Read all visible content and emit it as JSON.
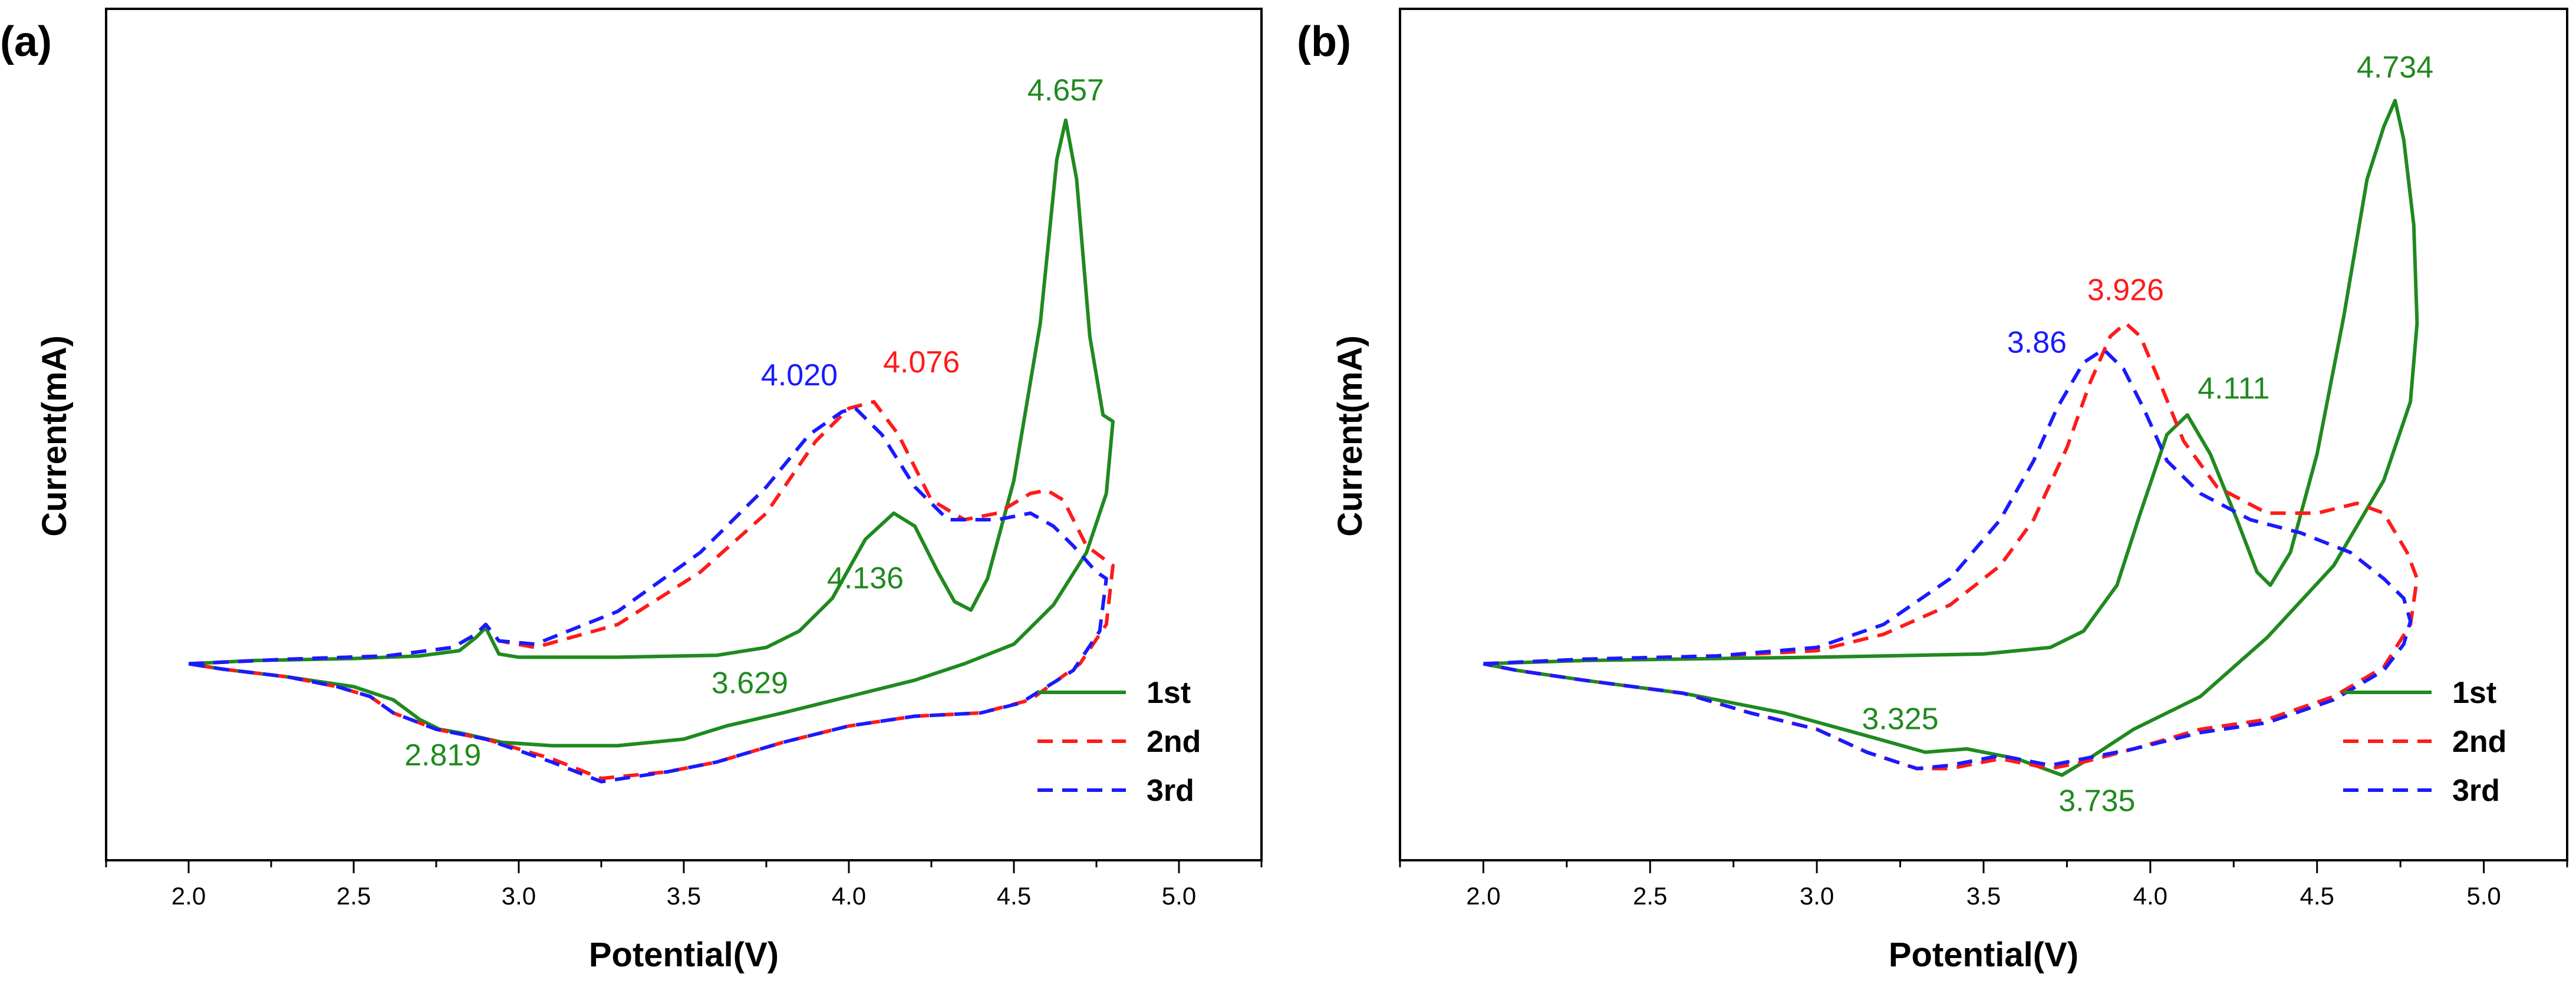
{
  "chart_data": [
    {
      "type": "line",
      "panel_label": "(a)",
      "xlabel": "Potential(V)",
      "ylabel": "Current(mA)",
      "xlim": [
        1.75,
        5.25
      ],
      "ylim": [
        -3.0,
        10.0
      ],
      "xticks": [
        2.0,
        2.5,
        3.0,
        3.5,
        4.0,
        4.5,
        5.0
      ],
      "xtick_labels": [
        "2.0",
        "2.5",
        "3.0",
        "3.5",
        "4.0",
        "4.5",
        "5.0"
      ],
      "legend": {
        "position": "bottom-right",
        "entries": [
          "1st",
          "2nd",
          "3rd"
        ]
      },
      "series": [
        {
          "name": "1st",
          "color": "#1f8a1f",
          "dash": "solid",
          "x": [
            2.0,
            2.2,
            2.5,
            2.7,
            2.82,
            2.87,
            2.9,
            2.94,
            3.0,
            3.3,
            3.6,
            3.75,
            3.85,
            3.95,
            4.05,
            4.136,
            4.2,
            4.27,
            4.32,
            4.37,
            4.42,
            4.5,
            4.58,
            4.63,
            4.657,
            4.69,
            4.73,
            4.77,
            4.8,
            4.78,
            4.72,
            4.62,
            4.5,
            4.35,
            4.2,
            4.0,
            3.8,
            3.629,
            3.5,
            3.3,
            3.1,
            2.95,
            2.819,
            2.76,
            2.7,
            2.62,
            2.5,
            2.3,
            2.1,
            2.0
          ],
          "y": [
            0.0,
            0.05,
            0.08,
            0.12,
            0.2,
            0.4,
            0.55,
            0.15,
            0.1,
            0.1,
            0.13,
            0.25,
            0.5,
            1.0,
            1.9,
            2.3,
            2.1,
            1.4,
            0.95,
            0.82,
            1.3,
            2.8,
            5.2,
            7.7,
            8.3,
            7.4,
            5.0,
            3.8,
            3.7,
            2.6,
            1.7,
            0.9,
            0.3,
            0.0,
            -0.25,
            -0.5,
            -0.75,
            -0.95,
            -1.15,
            -1.25,
            -1.25,
            -1.2,
            -1.05,
            -1.0,
            -0.85,
            -0.55,
            -0.35,
            -0.2,
            -0.08,
            0.0
          ]
        },
        {
          "name": "2nd",
          "color": "#ff1a1a",
          "dash": "dashed",
          "x": [
            2.0,
            2.3,
            2.6,
            2.8,
            2.87,
            2.9,
            2.94,
            3.05,
            3.3,
            3.55,
            3.75,
            3.9,
            4.0,
            4.076,
            4.15,
            4.25,
            4.35,
            4.45,
            4.55,
            4.6,
            4.65,
            4.72,
            4.8,
            4.78,
            4.7,
            4.55,
            4.4,
            4.2,
            4.0,
            3.8,
            3.6,
            3.45,
            3.25,
            3.1,
            2.9,
            2.75,
            2.62,
            2.55,
            2.45,
            2.3,
            2.1,
            2.0
          ],
          "y": [
            0.0,
            0.07,
            0.12,
            0.25,
            0.45,
            0.6,
            0.35,
            0.25,
            0.6,
            1.4,
            2.3,
            3.4,
            3.9,
            4.0,
            3.5,
            2.5,
            2.2,
            2.3,
            2.6,
            2.65,
            2.5,
            1.8,
            1.5,
            0.6,
            0.0,
            -0.55,
            -0.75,
            -0.8,
            -0.95,
            -1.2,
            -1.5,
            -1.65,
            -1.75,
            -1.45,
            -1.15,
            -1.0,
            -0.75,
            -0.5,
            -0.35,
            -0.2,
            -0.08,
            0.0
          ]
        },
        {
          "name": "3rd",
          "color": "#1a1aff",
          "dash": "dashed",
          "x": [
            2.0,
            2.3,
            2.6,
            2.8,
            2.87,
            2.9,
            2.94,
            3.05,
            3.3,
            3.55,
            3.75,
            3.88,
            3.98,
            4.02,
            4.1,
            4.2,
            4.3,
            4.45,
            4.55,
            4.62,
            4.68,
            4.75,
            4.78,
            4.76,
            4.68,
            4.52,
            4.4,
            4.2,
            4.0,
            3.8,
            3.6,
            3.45,
            3.25,
            3.1,
            2.9,
            2.75,
            2.62,
            2.55,
            2.45,
            2.3,
            2.1,
            2.0
          ],
          "y": [
            0.0,
            0.07,
            0.12,
            0.25,
            0.45,
            0.6,
            0.35,
            0.3,
            0.8,
            1.7,
            2.7,
            3.5,
            3.85,
            3.9,
            3.5,
            2.7,
            2.2,
            2.2,
            2.3,
            2.1,
            1.8,
            1.4,
            1.3,
            0.5,
            -0.1,
            -0.6,
            -0.75,
            -0.8,
            -0.95,
            -1.2,
            -1.5,
            -1.65,
            -1.8,
            -1.5,
            -1.15,
            -1.0,
            -0.75,
            -0.5,
            -0.35,
            -0.2,
            -0.08,
            0.0
          ]
        }
      ],
      "annotations": [
        {
          "text": "4.657",
          "x": 4.657,
          "y": 8.6,
          "color": "#1f8a1f"
        },
        {
          "text": "4.020",
          "x": 3.85,
          "y": 4.25,
          "color": "#1a1aff"
        },
        {
          "text": "4.076",
          "x": 4.22,
          "y": 4.45,
          "color": "#ff1a1a"
        },
        {
          "text": "4.136",
          "x": 4.05,
          "y": 1.15,
          "color": "#1f8a1f"
        },
        {
          "text": "3.629",
          "x": 3.7,
          "y": -0.45,
          "color": "#1f8a1f"
        },
        {
          "text": "2.819",
          "x": 2.77,
          "y": -1.55,
          "color": "#1f8a1f"
        }
      ]
    },
    {
      "type": "line",
      "panel_label": "(b)",
      "xlabel": "Potential(V)",
      "ylabel": "Current(mA)",
      "xlim": [
        1.75,
        5.25
      ],
      "ylim": [
        -3.0,
        10.0
      ],
      "xticks": [
        2.0,
        2.5,
        3.0,
        3.5,
        4.0,
        4.5,
        5.0
      ],
      "xtick_labels": [
        "2.0",
        "2.5",
        "3.0",
        "3.5",
        "4.0",
        "4.5",
        "5.0"
      ],
      "legend": {
        "position": "bottom-right",
        "entries": [
          "1st",
          "2nd",
          "3rd"
        ]
      },
      "series": [
        {
          "name": "1st",
          "color": "#1f8a1f",
          "dash": "solid",
          "x": [
            2.0,
            2.3,
            2.7,
            3.0,
            3.5,
            3.7,
            3.8,
            3.9,
            3.97,
            4.05,
            4.111,
            4.18,
            4.26,
            4.32,
            4.36,
            4.42,
            4.5,
            4.58,
            4.65,
            4.7,
            4.734,
            4.76,
            4.79,
            4.8,
            4.78,
            4.7,
            4.55,
            4.35,
            4.15,
            3.95,
            3.8,
            3.735,
            3.6,
            3.45,
            3.325,
            3.15,
            2.9,
            2.6,
            2.3,
            2.1,
            2.0
          ],
          "y": [
            0.0,
            0.05,
            0.08,
            0.1,
            0.15,
            0.25,
            0.5,
            1.2,
            2.3,
            3.5,
            3.8,
            3.2,
            2.2,
            1.4,
            1.2,
            1.7,
            3.2,
            5.3,
            7.4,
            8.2,
            8.6,
            8.0,
            6.7,
            5.2,
            4.0,
            2.8,
            1.5,
            0.4,
            -0.5,
            -1.0,
            -1.5,
            -1.7,
            -1.45,
            -1.3,
            -1.35,
            -1.1,
            -0.75,
            -0.45,
            -0.25,
            -0.1,
            0.0
          ]
        },
        {
          "name": "2nd",
          "color": "#ff1a1a",
          "dash": "dashed",
          "x": [
            2.0,
            2.3,
            2.7,
            3.0,
            3.2,
            3.4,
            3.55,
            3.65,
            3.75,
            3.82,
            3.88,
            3.926,
            3.97,
            4.02,
            4.1,
            4.2,
            4.35,
            4.5,
            4.62,
            4.7,
            4.77,
            4.8,
            4.78,
            4.7,
            4.55,
            4.35,
            4.15,
            3.95,
            3.8,
            3.7,
            3.55,
            3.4,
            3.3,
            3.15,
            3.0,
            2.8,
            2.6,
            2.3,
            2.1,
            2.0
          ],
          "y": [
            0.0,
            0.07,
            0.12,
            0.2,
            0.45,
            0.9,
            1.5,
            2.2,
            3.3,
            4.3,
            5.0,
            5.2,
            5.0,
            4.4,
            3.4,
            2.7,
            2.3,
            2.3,
            2.45,
            2.3,
            1.7,
            1.3,
            0.6,
            -0.05,
            -0.5,
            -0.85,
            -1.0,
            -1.3,
            -1.5,
            -1.6,
            -1.45,
            -1.6,
            -1.6,
            -1.35,
            -1.0,
            -0.75,
            -0.45,
            -0.25,
            -0.1,
            0.0
          ]
        },
        {
          "name": "3rd",
          "color": "#1a1aff",
          "dash": "dashed",
          "x": [
            2.0,
            2.3,
            2.7,
            3.0,
            3.2,
            3.4,
            3.55,
            3.65,
            3.72,
            3.8,
            3.86,
            3.92,
            3.98,
            4.05,
            4.15,
            4.3,
            4.45,
            4.6,
            4.7,
            4.76,
            4.78,
            4.76,
            4.7,
            4.55,
            4.35,
            4.15,
            3.95,
            3.8,
            3.7,
            3.55,
            3.4,
            3.3,
            3.15,
            3.0,
            2.8,
            2.6,
            2.3,
            2.1,
            2.0
          ],
          "y": [
            0.0,
            0.07,
            0.12,
            0.25,
            0.6,
            1.3,
            2.2,
            3.1,
            3.9,
            4.6,
            4.8,
            4.5,
            3.9,
            3.1,
            2.6,
            2.2,
            2.0,
            1.7,
            1.3,
            1.0,
            0.65,
            0.3,
            -0.1,
            -0.55,
            -0.9,
            -1.05,
            -1.3,
            -1.45,
            -1.55,
            -1.4,
            -1.55,
            -1.6,
            -1.35,
            -1.0,
            -0.75,
            -0.45,
            -0.25,
            -0.1,
            0.0
          ]
        }
      ],
      "annotations": [
        {
          "text": "4.734",
          "x": 4.734,
          "y": 8.95,
          "color": "#1f8a1f"
        },
        {
          "text": "3.926",
          "x": 3.926,
          "y": 5.55,
          "color": "#ff1a1a"
        },
        {
          "text": "3.86",
          "x": 3.66,
          "y": 4.75,
          "color": "#1a1aff"
        },
        {
          "text": "4.111",
          "x": 4.25,
          "y": 4.05,
          "color": "#1f8a1f"
        },
        {
          "text": "3.325",
          "x": 3.25,
          "y": -1.0,
          "color": "#1f8a1f"
        },
        {
          "text": "3.735",
          "x": 3.84,
          "y": -2.25,
          "color": "#1f8a1f"
        }
      ]
    }
  ]
}
